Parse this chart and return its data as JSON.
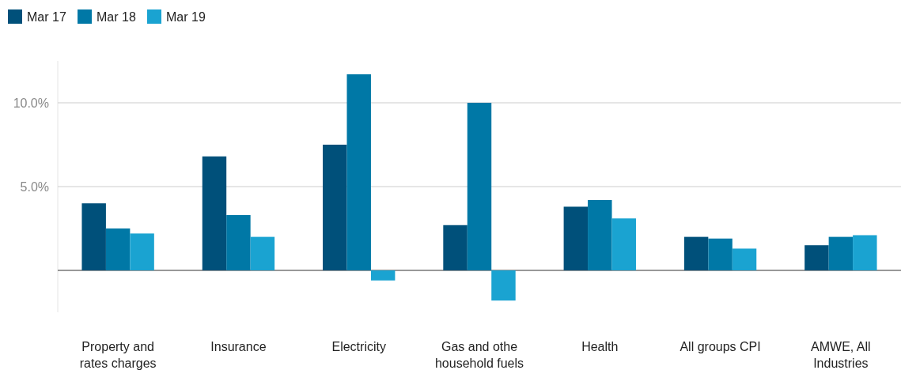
{
  "chart_data": {
    "type": "bar",
    "categories": [
      "Property and rates charges",
      "Insurance",
      "Electricity",
      "Gas and othe household fuels",
      "Health",
      "All groups CPI",
      "AMWE, All Industries"
    ],
    "series": [
      {
        "name": "Mar 17",
        "color": "#00507a",
        "values": [
          4.0,
          6.8,
          7.5,
          2.7,
          3.8,
          2.0,
          1.5
        ]
      },
      {
        "name": "Mar 18",
        "color": "#0078a6",
        "values": [
          2.5,
          3.3,
          11.7,
          10.0,
          4.2,
          1.9,
          2.0
        ]
      },
      {
        "name": "Mar 19",
        "color": "#1aa3d1",
        "values": [
          2.2,
          2.0,
          -0.6,
          -1.8,
          3.1,
          1.3,
          2.1
        ]
      }
    ],
    "ylim": [
      -2.5,
      12.5
    ],
    "yticks": [
      {
        "value": 0,
        "label": null
      },
      {
        "value": 5,
        "label": "5.0%"
      },
      {
        "value": 10,
        "label": "10.0%"
      }
    ],
    "grid": "y",
    "legend": "top left"
  }
}
